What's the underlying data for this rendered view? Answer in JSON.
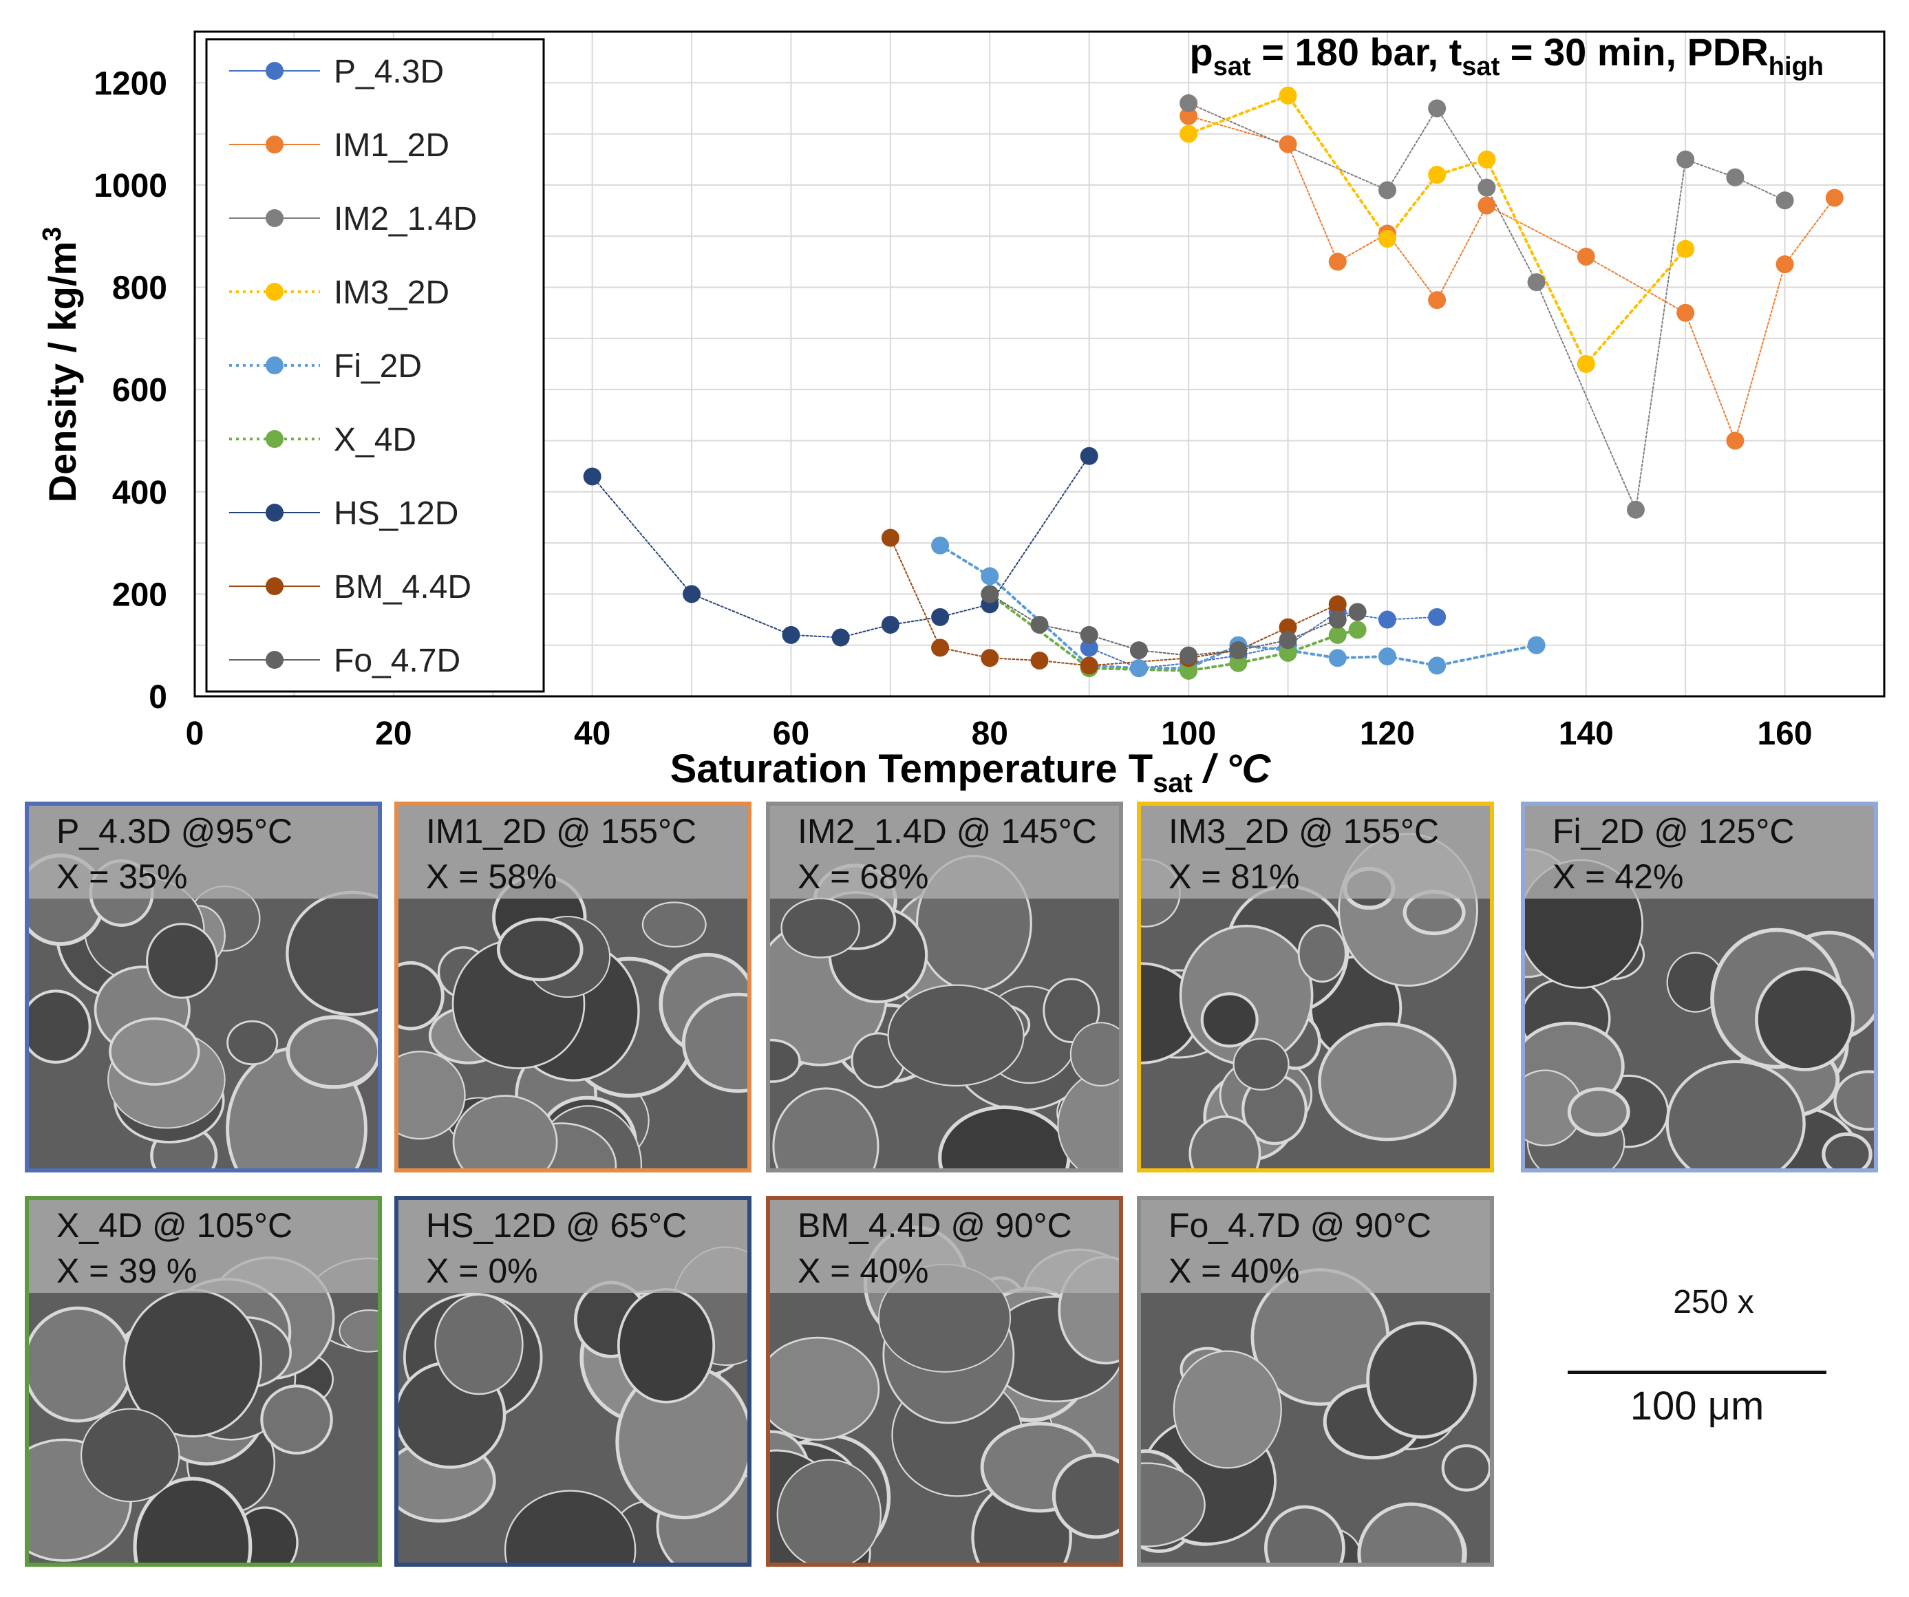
{
  "chart_data": {
    "type": "scatter",
    "title_parts": {
      "p": "p",
      "p_sub": "sat",
      "p_val": " = 180 bar, ",
      "t": "t",
      "t_sub": "sat",
      "t_val": " = 30 min, PDR",
      "pdr_sub": "high"
    },
    "xlabel": {
      "main": "Saturation Temperature T",
      "sub": "sat",
      "unit": " / °C"
    },
    "ylabel": {
      "main": "Density / kg/m",
      "sup": "3"
    },
    "xlim": [
      0,
      170
    ],
    "ylim": [
      0,
      1300
    ],
    "xticks": [
      0,
      20,
      40,
      60,
      80,
      100,
      120,
      140,
      160
    ],
    "yticks": [
      0,
      200,
      400,
      600,
      800,
      1000,
      1200
    ],
    "grid": true,
    "legend_position": "top-left",
    "series": [
      {
        "name": "P_4.3D",
        "color": "#4472C4",
        "dashed": false,
        "points": [
          [
            90,
            95
          ],
          [
            95,
            55
          ],
          [
            100,
            65
          ],
          [
            105,
            80
          ],
          [
            110,
            100
          ],
          [
            115,
            165
          ],
          [
            120,
            150
          ],
          [
            125,
            155
          ]
        ]
      },
      {
        "name": "IM1_2D",
        "color": "#ED7D31",
        "dashed": false,
        "points": [
          [
            100,
            1135
          ],
          [
            110,
            1080
          ],
          [
            115,
            850
          ],
          [
            120,
            905
          ],
          [
            125,
            775
          ],
          [
            130,
            960
          ],
          [
            140,
            860
          ],
          [
            150,
            750
          ],
          [
            155,
            500
          ],
          [
            160,
            845
          ],
          [
            165,
            975
          ]
        ]
      },
      {
        "name": "IM2_1.4D",
        "color": "#7F7F7F",
        "dashed": false,
        "points": [
          [
            100,
            1160
          ],
          [
            120,
            990
          ],
          [
            125,
            1150
          ],
          [
            130,
            995
          ],
          [
            135,
            810
          ],
          [
            145,
            365
          ],
          [
            150,
            1050
          ],
          [
            155,
            1015
          ],
          [
            160,
            970
          ]
        ]
      },
      {
        "name": "IM3_2D",
        "color": "#FFC000",
        "dashed": true,
        "points": [
          [
            100,
            1100
          ],
          [
            110,
            1175
          ],
          [
            120,
            895
          ],
          [
            125,
            1020
          ],
          [
            130,
            1050
          ],
          [
            140,
            650
          ],
          [
            150,
            875
          ]
        ]
      },
      {
        "name": "Fi_2D",
        "color": "#5B9BD5",
        "dashed": true,
        "points": [
          [
            75,
            295
          ],
          [
            80,
            235
          ],
          [
            90,
            60
          ],
          [
            95,
            55
          ],
          [
            100,
            55
          ],
          [
            105,
            100
          ],
          [
            110,
            90
          ],
          [
            115,
            75
          ],
          [
            120,
            78
          ],
          [
            125,
            60
          ],
          [
            135,
            100
          ]
        ]
      },
      {
        "name": "X_4D",
        "color": "#70AD47",
        "dashed": true,
        "points": [
          [
            80,
            200
          ],
          [
            90,
            55
          ],
          [
            100,
            50
          ],
          [
            105,
            65
          ],
          [
            110,
            85
          ],
          [
            115,
            120
          ],
          [
            117,
            130
          ]
        ]
      },
      {
        "name": "HS_12D",
        "color": "#264478",
        "dashed": false,
        "points": [
          [
            40,
            430
          ],
          [
            50,
            200
          ],
          [
            60,
            120
          ],
          [
            65,
            115
          ],
          [
            70,
            140
          ],
          [
            75,
            155
          ],
          [
            80,
            180
          ],
          [
            90,
            470
          ]
        ]
      },
      {
        "name": "BM_4.4D",
        "color": "#9E480E",
        "dashed": false,
        "points": [
          [
            70,
            310
          ],
          [
            75,
            95
          ],
          [
            80,
            75
          ],
          [
            85,
            70
          ],
          [
            90,
            60
          ],
          [
            100,
            75
          ],
          [
            105,
            90
          ],
          [
            110,
            135
          ],
          [
            115,
            180
          ]
        ]
      },
      {
        "name": "Fo_4.7D",
        "color": "#636363",
        "dashed": false,
        "points": [
          [
            80,
            200
          ],
          [
            85,
            140
          ],
          [
            90,
            120
          ],
          [
            95,
            90
          ],
          [
            100,
            80
          ],
          [
            105,
            90
          ],
          [
            110,
            110
          ],
          [
            115,
            150
          ],
          [
            117,
            165
          ]
        ]
      }
    ]
  },
  "micrographs": [
    {
      "line1": "P_4.3D @95°C",
      "line2": "X = 35%",
      "border": "#4F6EB5"
    },
    {
      "line1": "IM1_2D @ 155°C",
      "line2": "X = 58%",
      "border": "#E58A47"
    },
    {
      "line1": "IM2_1.4D @ 145°C",
      "line2": "X = 68%",
      "border": "#8C8C8C"
    },
    {
      "line1": "IM3_2D @ 155°C",
      "line2": "X = 81%",
      "border": "#F2C00F"
    },
    {
      "line1": "Fi_2D @ 125°C",
      "line2": "X = 42%",
      "border": "#8FA9D9"
    },
    {
      "line1": "X_4D @ 105°C",
      "line2": "X = 39 %",
      "border": "#5E9A3E"
    },
    {
      "line1": "HS_12D @ 65°C",
      "line2": "X = 0%",
      "border": "#2F4B7E"
    },
    {
      "line1": "BM_4.4D @ 90°C",
      "line2": "X = 40%",
      "border": "#A0522D"
    },
    {
      "line1": "Fo_4.7D @ 90°C",
      "line2": "X = 40%",
      "border": "#8C8C8C"
    }
  ],
  "scale": {
    "magnification": "250 x",
    "length": "100 μm"
  }
}
